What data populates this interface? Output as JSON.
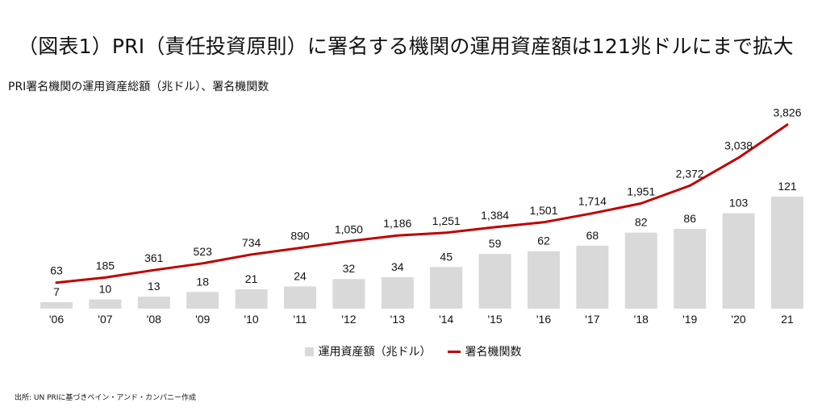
{
  "title": "（図表1）PRI（責任投資原則）に署名する機関の運用資産額は121兆ドルにまで拡大",
  "subtitle": "PRI署名機関の運用資産総額（兆ドル）、署名機関数",
  "source": "出所: UN PRIに基づきベイン・アンド・カンパニー作成",
  "colors": {
    "bar": "#d9d9d9",
    "line": "#c00000"
  },
  "legend": {
    "bar_label": "運用資産額（兆ドル）",
    "line_label": "署名機関数"
  },
  "chart_data": {
    "type": "bar+line",
    "categories": [
      "'06",
      "'07",
      "'08",
      "'09",
      "'10",
      "'11",
      "'12",
      "'13",
      "'14",
      "'15",
      "'16",
      "'17",
      "'18",
      "'19",
      "'20",
      "21"
    ],
    "series": [
      {
        "name": "運用資産額（兆ドル）",
        "type": "bar",
        "values": [
          7,
          10,
          13,
          18,
          21,
          24,
          32,
          34,
          45,
          59,
          62,
          68,
          82,
          86,
          103,
          121
        ],
        "labels": [
          "7",
          "10",
          "13",
          "18",
          "21",
          "24",
          "32",
          "34",
          "45",
          "59",
          "62",
          "68",
          "82",
          "86",
          "103",
          "121"
        ]
      },
      {
        "name": "署名機関数",
        "type": "line",
        "values": [
          63,
          185,
          361,
          523,
          734,
          890,
          1050,
          1186,
          1251,
          1384,
          1501,
          1714,
          1951,
          2372,
          3038,
          3826
        ],
        "labels": [
          "63",
          "185",
          "361",
          "523",
          "734",
          "890",
          "1,050",
          "1,186",
          "1,251",
          "1,384",
          "1,501",
          "1,714",
          "1,951",
          "2,372",
          "3,038",
          "3,826"
        ]
      }
    ],
    "legend_position": "bottom-center",
    "grid": false
  }
}
